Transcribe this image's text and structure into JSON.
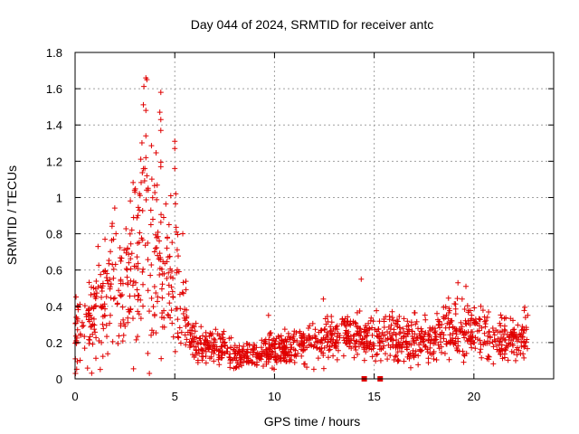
{
  "chart_data": {
    "type": "scatter",
    "title": "Day 044 of 2024, SRMTID for receiver antc",
    "xlabel": "GPS time / hours",
    "ylabel": "SRMTID / TECUs",
    "xlim": [
      0,
      24
    ],
    "ylim": [
      0,
      1.8
    ],
    "x_ticks": [
      0,
      5,
      10,
      15,
      20
    ],
    "x_tick_labels": [
      "0",
      "5",
      "10",
      "15",
      "20"
    ],
    "y_ticks": [
      0,
      0.2,
      0.4,
      0.6,
      0.8,
      1.0,
      1.2,
      1.4,
      1.6,
      1.8
    ],
    "y_tick_labels": [
      "0",
      "0.2",
      "0.4",
      "0.6",
      "0.8",
      "1",
      "1.2",
      "1.4",
      "1.6",
      "1.8"
    ],
    "grid": true,
    "marker": "plus",
    "color": "#e00000",
    "series": [
      {
        "name": "SRMTID",
        "envelope": [
          [
            0.0,
            0.25
          ],
          [
            0.5,
            0.28
          ],
          [
            1.0,
            0.38
          ],
          [
            1.5,
            0.42
          ],
          [
            2.0,
            0.55
          ],
          [
            2.5,
            0.5
          ],
          [
            3.0,
            0.62
          ],
          [
            3.5,
            0.9
          ],
          [
            4.0,
            0.75
          ],
          [
            4.5,
            0.5
          ],
          [
            5.0,
            0.6
          ],
          [
            5.5,
            0.3
          ],
          [
            6.0,
            0.2
          ],
          [
            7.0,
            0.18
          ],
          [
            8.0,
            0.12
          ],
          [
            9.0,
            0.13
          ],
          [
            10.0,
            0.16
          ],
          [
            11.0,
            0.18
          ],
          [
            12.0,
            0.2
          ],
          [
            13.0,
            0.22
          ],
          [
            14.0,
            0.24
          ],
          [
            15.0,
            0.21
          ],
          [
            16.0,
            0.23
          ],
          [
            17.0,
            0.22
          ],
          [
            18.0,
            0.23
          ],
          [
            19.0,
            0.27
          ],
          [
            20.0,
            0.26
          ],
          [
            21.0,
            0.23
          ],
          [
            22.0,
            0.2
          ],
          [
            22.7,
            0.24
          ]
        ],
        "peaks": [
          {
            "x": 3.55,
            "y": 1.66
          },
          {
            "x": 3.6,
            "y": 1.65
          },
          {
            "x": 3.55,
            "y": 1.48
          },
          {
            "x": 4.3,
            "y": 1.58
          },
          {
            "x": 4.25,
            "y": 1.47
          },
          {
            "x": 4.3,
            "y": 1.43
          },
          {
            "x": 4.3,
            "y": 1.37
          },
          {
            "x": 3.55,
            "y": 1.34
          },
          {
            "x": 5.0,
            "y": 1.31
          },
          {
            "x": 5.0,
            "y": 1.27
          },
          {
            "x": 3.55,
            "y": 1.22
          },
          {
            "x": 4.3,
            "y": 1.17
          },
          {
            "x": 5.0,
            "y": 1.16
          },
          {
            "x": 3.5,
            "y": 1.16
          },
          {
            "x": 3.6,
            "y": 1.12
          },
          {
            "x": 3.0,
            "y": 1.03
          },
          {
            "x": 5.05,
            "y": 1.02
          },
          {
            "x": 4.8,
            "y": 1.01
          },
          {
            "x": 3.8,
            "y": 0.93
          },
          {
            "x": 3.9,
            "y": 0.88
          },
          {
            "x": 2.05,
            "y": 0.8
          },
          {
            "x": 1.5,
            "y": 0.77
          },
          {
            "x": 1.15,
            "y": 0.73
          },
          {
            "x": 5.4,
            "y": 0.8
          },
          {
            "x": 14.35,
            "y": 0.55
          },
          {
            "x": 19.2,
            "y": 0.53
          },
          {
            "x": 19.6,
            "y": 0.51
          },
          {
            "x": 20.35,
            "y": 0.4
          },
          {
            "x": 12.45,
            "y": 0.44
          },
          {
            "x": 9.7,
            "y": 0.35
          },
          {
            "x": 15.9,
            "y": 0.37
          },
          {
            "x": 22.7,
            "y": 0.35
          }
        ],
        "zeros": [
          14.5,
          15.3
        ]
      }
    ]
  }
}
